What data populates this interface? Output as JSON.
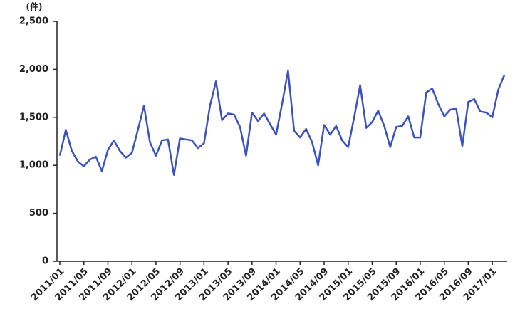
{
  "chart_data": {
    "type": "line",
    "unit_label": "(件)",
    "categories": [
      "2011/01",
      null,
      null,
      null,
      "2011/05",
      null,
      null,
      null,
      "2011/09",
      null,
      null,
      null,
      "2012/01",
      null,
      null,
      null,
      "2012/05",
      null,
      null,
      null,
      "2012/09",
      null,
      null,
      null,
      "2013/01",
      null,
      null,
      null,
      "2013/05",
      null,
      null,
      null,
      "2013/09",
      null,
      null,
      null,
      "2014/01",
      null,
      null,
      null,
      "2014/05",
      null,
      null,
      null,
      "2014/09",
      null,
      null,
      null,
      "2015/01",
      null,
      null,
      null,
      "2015/05",
      null,
      null,
      null,
      "2015/09",
      null,
      null,
      null,
      "2016/01",
      null,
      null,
      null,
      "2016/05",
      null,
      null,
      null,
      "2016/09",
      null,
      null,
      null,
      "2017/01",
      null,
      null
    ],
    "values": [
      1100,
      1370,
      1150,
      1040,
      990,
      1060,
      1090,
      940,
      1160,
      1260,
      1150,
      1080,
      1130,
      1370,
      1620,
      1240,
      1100,
      1260,
      1270,
      900,
      1280,
      1270,
      1260,
      1180,
      1230,
      1620,
      1875,
      1470,
      1540,
      1530,
      1400,
      1100,
      1550,
      1460,
      1540,
      1430,
      1320,
      1640,
      1985,
      1360,
      1290,
      1380,
      1240,
      1000,
      1420,
      1320,
      1410,
      1260,
      1190,
      1500,
      1835,
      1390,
      1450,
      1570,
      1410,
      1190,
      1400,
      1410,
      1510,
      1290,
      1290,
      1760,
      1800,
      1640,
      1510,
      1580,
      1590,
      1200,
      1660,
      1690,
      1560,
      1550,
      1500,
      1790,
      1940
    ],
    "color": "#3a52c0",
    "ylim": [
      0,
      2500
    ],
    "yticks": [
      0,
      500,
      {
        "value": 1000,
        "label": "1,000"
      },
      {
        "value": 1500,
        "label": "1,500"
      },
      {
        "value": 2000,
        "label": "2,000"
      },
      {
        "value": 2500,
        "label": "2,500"
      }
    ],
    "grid": false
  }
}
